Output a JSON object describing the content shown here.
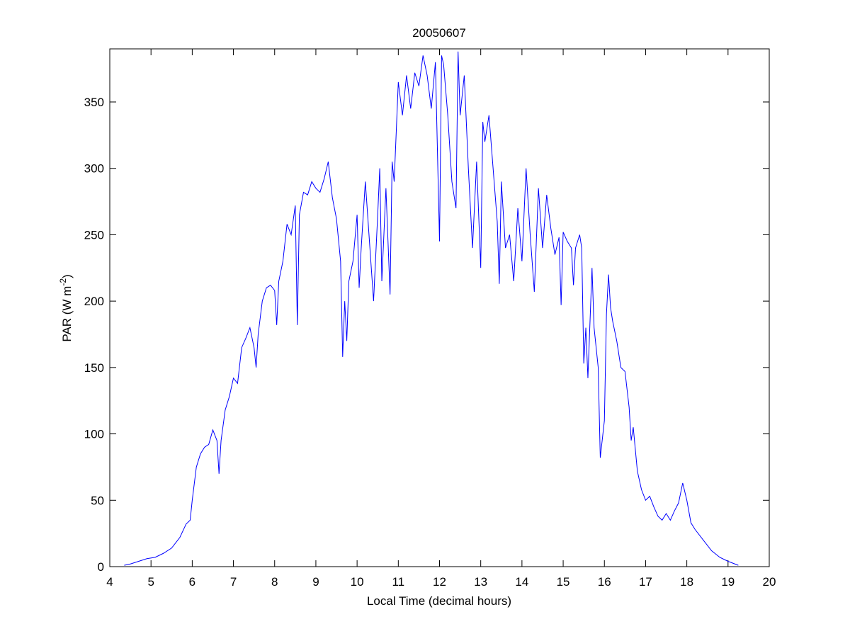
{
  "chart_data": {
    "type": "line",
    "title": "20050607",
    "xlabel": "Local Time (decimal hours)",
    "ylabel_parts": [
      "PAR (W m",
      "-2",
      ")"
    ],
    "xlim": [
      4,
      20
    ],
    "ylim": [
      0,
      390
    ],
    "xticks": [
      4,
      5,
      6,
      7,
      8,
      9,
      10,
      11,
      12,
      13,
      14,
      15,
      16,
      17,
      18,
      19,
      20
    ],
    "yticks": [
      0,
      50,
      100,
      150,
      200,
      250,
      300,
      350
    ],
    "series": [
      {
        "color": "#0000ff",
        "x": [
          4.35,
          4.5,
          4.7,
          4.9,
          5.1,
          5.3,
          5.5,
          5.7,
          5.85,
          5.95,
          6.0,
          6.1,
          6.2,
          6.3,
          6.4,
          6.5,
          6.6,
          6.65,
          6.7,
          6.8,
          6.9,
          7.0,
          7.1,
          7.2,
          7.3,
          7.4,
          7.5,
          7.55,
          7.6,
          7.7,
          7.8,
          7.9,
          8.0,
          8.05,
          8.1,
          8.2,
          8.3,
          8.4,
          8.5,
          8.55,
          8.6,
          8.7,
          8.8,
          8.9,
          9.0,
          9.1,
          9.2,
          9.3,
          9.4,
          9.5,
          9.6,
          9.65,
          9.7,
          9.75,
          9.8,
          9.9,
          10.0,
          10.05,
          10.1,
          10.2,
          10.3,
          10.4,
          10.5,
          10.55,
          10.6,
          10.7,
          10.8,
          10.85,
          10.9,
          11.0,
          11.1,
          11.2,
          11.3,
          11.4,
          11.5,
          11.6,
          11.7,
          11.8,
          11.9,
          12.0,
          12.05,
          12.1,
          12.2,
          12.3,
          12.4,
          12.45,
          12.5,
          12.6,
          12.7,
          12.8,
          12.9,
          13.0,
          13.05,
          13.1,
          13.2,
          13.3,
          13.4,
          13.45,
          13.5,
          13.6,
          13.7,
          13.8,
          13.9,
          14.0,
          14.1,
          14.2,
          14.3,
          14.4,
          14.5,
          14.6,
          14.7,
          14.8,
          14.9,
          14.95,
          15.0,
          15.1,
          15.2,
          15.25,
          15.3,
          15.4,
          15.45,
          15.5,
          15.55,
          15.6,
          15.7,
          15.75,
          15.8,
          15.85,
          15.9,
          16.0,
          16.05,
          16.1,
          16.15,
          16.2,
          16.3,
          16.4,
          16.5,
          16.6,
          16.65,
          16.7,
          16.8,
          16.9,
          17.0,
          17.1,
          17.2,
          17.3,
          17.4,
          17.5,
          17.6,
          17.7,
          17.8,
          17.9,
          18.0,
          18.1,
          18.2,
          18.4,
          18.6,
          18.8,
          19.0,
          19.25
        ],
        "values": [
          1,
          2,
          4,
          6,
          7,
          10,
          14,
          22,
          32,
          35,
          50,
          75,
          85,
          90,
          92,
          103,
          95,
          70,
          95,
          118,
          128,
          142,
          138,
          165,
          172,
          180,
          165,
          150,
          175,
          200,
          210,
          212,
          208,
          182,
          215,
          230,
          258,
          250,
          272,
          182,
          265,
          282,
          280,
          290,
          285,
          282,
          292,
          305,
          278,
          262,
          230,
          158,
          200,
          170,
          215,
          230,
          265,
          210,
          240,
          290,
          245,
          200,
          265,
          300,
          215,
          285,
          205,
          305,
          290,
          365,
          340,
          370,
          345,
          372,
          362,
          385,
          370,
          345,
          380,
          245,
          385,
          378,
          340,
          290,
          270,
          388,
          340,
          370,
          300,
          240,
          305,
          225,
          335,
          320,
          340,
          300,
          260,
          213,
          290,
          240,
          250,
          215,
          270,
          230,
          300,
          250,
          207,
          285,
          240,
          280,
          255,
          235,
          248,
          197,
          252,
          245,
          240,
          212,
          240,
          250,
          240,
          153,
          180,
          142,
          225,
          180,
          165,
          150,
          82,
          110,
          190,
          220,
          195,
          185,
          170,
          150,
          147,
          120,
          95,
          105,
          72,
          58,
          50,
          53,
          45,
          38,
          35,
          40,
          35,
          42,
          48,
          63,
          50,
          33,
          28,
          20,
          12,
          7,
          4,
          1
        ]
      }
    ]
  }
}
